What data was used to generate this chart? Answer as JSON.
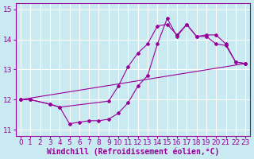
{
  "xlabel": "Windchill (Refroidissement éolien,°C)",
  "bg_color": "#c8eaf0",
  "line_color": "#990099",
  "grid_color": "#ffffff",
  "xlim": [
    -0.5,
    23.5
  ],
  "ylim": [
    10.8,
    15.2
  ],
  "yticks": [
    11,
    12,
    13,
    14,
    15
  ],
  "xticks": [
    0,
    1,
    2,
    3,
    4,
    5,
    6,
    7,
    8,
    9,
    10,
    11,
    12,
    13,
    14,
    15,
    16,
    17,
    18,
    19,
    20,
    21,
    22,
    23
  ],
  "line1_x": [
    0,
    1,
    3,
    4,
    5,
    6,
    7,
    8,
    9,
    10,
    11,
    12,
    13,
    14,
    15,
    16,
    17,
    18,
    19,
    20,
    21,
    22,
    23
  ],
  "line1_y": [
    12.0,
    12.0,
    11.85,
    11.75,
    11.2,
    11.25,
    11.3,
    11.3,
    11.35,
    11.55,
    11.9,
    12.45,
    12.8,
    13.85,
    14.7,
    14.1,
    14.5,
    14.1,
    14.1,
    13.85,
    13.8,
    13.25,
    13.2
  ],
  "line2_x": [
    0,
    1,
    3,
    4,
    9,
    10,
    11,
    12,
    13,
    14,
    15,
    16,
    17,
    18,
    19,
    20,
    21,
    22,
    23
  ],
  "line2_y": [
    12.0,
    12.0,
    11.85,
    11.75,
    11.95,
    12.45,
    13.1,
    13.55,
    13.85,
    14.45,
    14.5,
    14.15,
    14.5,
    14.1,
    14.15,
    14.15,
    13.85,
    13.25,
    13.2
  ],
  "line3_x": [
    0,
    23
  ],
  "line3_y": [
    12.0,
    13.2
  ],
  "tick_fontsize": 6.5,
  "xlabel_fontsize": 7
}
